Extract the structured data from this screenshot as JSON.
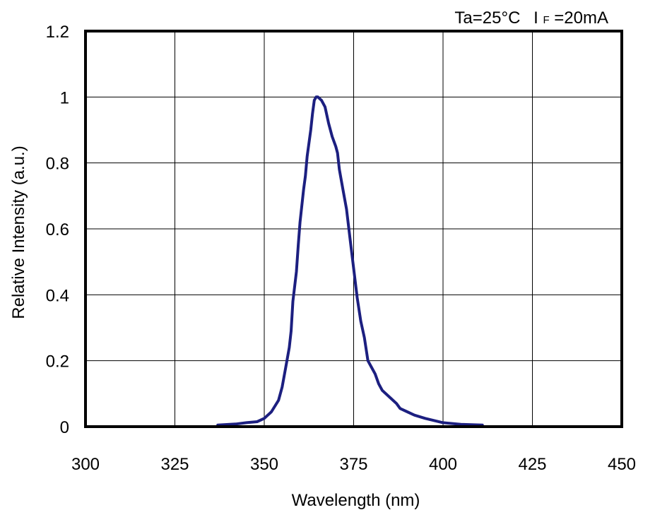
{
  "chart_data": {
    "type": "line",
    "title": "",
    "xlabel": "Wavelength (nm)",
    "ylabel": "Relative Intensity (a.u.)",
    "annotation": {
      "condition_text": "Ta=25°C",
      "current_prefix": "I",
      "current_subscript": "F",
      "current_suffix": "=20mA"
    },
    "xlim": [
      300,
      450
    ],
    "ylim": [
      0,
      1.2
    ],
    "x_ticks": [
      300,
      325,
      350,
      375,
      400,
      425,
      450
    ],
    "y_ticks": [
      0,
      0.2,
      0.4,
      0.6,
      0.8,
      1,
      1.2
    ],
    "x_tick_labels": [
      "300",
      "325",
      "350",
      "375",
      "400",
      "425",
      "450"
    ],
    "y_tick_labels": [
      "0",
      "0.2",
      "0.4",
      "0.6",
      "0.8",
      "1",
      "1.2"
    ],
    "grid": true,
    "colors": {
      "series": "#1c1f80",
      "grid": "#000000",
      "frame": "#000000"
    },
    "series": [
      {
        "x": [
          337,
          342,
          345,
          348,
          350,
          352,
          354,
          355,
          356,
          357,
          357.5,
          358,
          359,
          359.5,
          360,
          361,
          361.5,
          362,
          363,
          363.5,
          364,
          364.5,
          365,
          366,
          367,
          368,
          369,
          370,
          370.5,
          371,
          372,
          373,
          374,
          375,
          376,
          377,
          378,
          379,
          380,
          381,
          382,
          383,
          385,
          387,
          388,
          390,
          392,
          395,
          400,
          405,
          411
        ],
        "y": [
          0.005,
          0.008,
          0.012,
          0.015,
          0.025,
          0.045,
          0.08,
          0.12,
          0.18,
          0.24,
          0.29,
          0.38,
          0.47,
          0.55,
          0.62,
          0.72,
          0.76,
          0.82,
          0.9,
          0.95,
          0.99,
          1.0,
          1.0,
          0.99,
          0.97,
          0.92,
          0.88,
          0.85,
          0.83,
          0.78,
          0.72,
          0.66,
          0.57,
          0.48,
          0.39,
          0.32,
          0.27,
          0.2,
          0.18,
          0.16,
          0.13,
          0.11,
          0.09,
          0.07,
          0.055,
          0.045,
          0.035,
          0.025,
          0.012,
          0.007,
          0.005
        ]
      }
    ]
  }
}
